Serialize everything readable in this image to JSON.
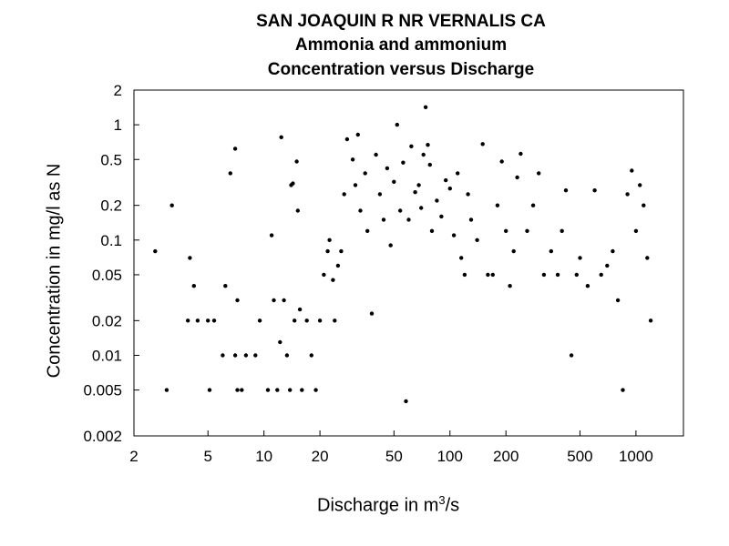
{
  "chart_data": {
    "type": "scatter",
    "title": "SAN JOAQUIN R NR VERNALIS CA",
    "subtitle": "Ammonia and ammonium",
    "subtitle2": "Concentration versus Discharge",
    "xlabel_prefix": "Discharge in m",
    "xlabel_sup": "3",
    "xlabel_suffix": "/s",
    "ylabel": "Concentration in mg/l as N",
    "xscale": "log",
    "yscale": "log",
    "xlim": [
      2,
      1800
    ],
    "ylim": [
      0.002,
      2
    ],
    "xticks": [
      2,
      5,
      10,
      20,
      50,
      100,
      200,
      500,
      1000
    ],
    "xtick_labels": [
      "2",
      "5",
      "10",
      "20",
      "50",
      "100",
      "200",
      "500",
      "1000"
    ],
    "yticks": [
      0.002,
      0.005,
      0.01,
      0.02,
      0.05,
      0.1,
      0.2,
      0.5,
      1,
      2
    ],
    "ytick_labels": [
      "0.002",
      "0.005",
      "0.01",
      "0.02",
      "0.05",
      "0.1",
      "0.2",
      "0.5",
      "1",
      "2"
    ],
    "grid": false,
    "marker": "filled-circle",
    "color": "#000000",
    "points": [
      [
        2.6,
        0.08
      ],
      [
        3.0,
        0.005
      ],
      [
        3.2,
        0.2
      ],
      [
        3.9,
        0.02
      ],
      [
        4.0,
        0.07
      ],
      [
        4.2,
        0.04
      ],
      [
        4.4,
        0.02
      ],
      [
        5.0,
        0.02
      ],
      [
        5.1,
        0.005
      ],
      [
        5.4,
        0.02
      ],
      [
        6.0,
        0.01
      ],
      [
        6.2,
        0.04
      ],
      [
        6.6,
        0.38
      ],
      [
        7.0,
        0.62
      ],
      [
        7.0,
        0.01
      ],
      [
        7.2,
        0.03
      ],
      [
        7.2,
        0.005
      ],
      [
        7.6,
        0.005
      ],
      [
        8.0,
        0.01
      ],
      [
        9.0,
        0.01
      ],
      [
        9.5,
        0.02
      ],
      [
        10.5,
        0.005
      ],
      [
        11.0,
        0.11
      ],
      [
        11.3,
        0.03
      ],
      [
        11.8,
        0.005
      ],
      [
        12.2,
        0.013
      ],
      [
        12.4,
        0.78
      ],
      [
        12.8,
        0.03
      ],
      [
        13.3,
        0.01
      ],
      [
        13.8,
        0.005
      ],
      [
        14.0,
        0.3
      ],
      [
        14.3,
        0.31
      ],
      [
        14.6,
        0.02
      ],
      [
        15.0,
        0.48
      ],
      [
        15.2,
        0.18
      ],
      [
        15.6,
        0.025
      ],
      [
        16.0,
        0.005
      ],
      [
        17.0,
        0.02
      ],
      [
        18.0,
        0.01
      ],
      [
        19.0,
        0.005
      ],
      [
        20.0,
        0.02
      ],
      [
        21.0,
        0.05
      ],
      [
        22.0,
        0.08
      ],
      [
        22.5,
        0.1
      ],
      [
        23.5,
        0.045
      ],
      [
        24.0,
        0.02
      ],
      [
        25.0,
        0.06
      ],
      [
        26.0,
        0.08
      ],
      [
        27.0,
        0.25
      ],
      [
        28.0,
        0.75
      ],
      [
        30.0,
        0.5
      ],
      [
        31.0,
        0.3
      ],
      [
        32.0,
        0.82
      ],
      [
        33.0,
        0.18
      ],
      [
        35.0,
        0.38
      ],
      [
        36.0,
        0.12
      ],
      [
        38.0,
        0.023
      ],
      [
        40.0,
        0.55
      ],
      [
        42.0,
        0.25
      ],
      [
        44.0,
        0.15
      ],
      [
        46.0,
        0.42
      ],
      [
        48.0,
        0.09
      ],
      [
        50.0,
        0.32
      ],
      [
        52.0,
        1.0
      ],
      [
        54.0,
        0.18
      ],
      [
        56.0,
        0.47
      ],
      [
        58.0,
        0.004
      ],
      [
        60.0,
        0.15
      ],
      [
        62.0,
        0.65
      ],
      [
        65.0,
        0.26
      ],
      [
        68.0,
        0.3
      ],
      [
        70.0,
        0.19
      ],
      [
        72.0,
        0.55
      ],
      [
        74.0,
        1.42
      ],
      [
        76.0,
        0.67
      ],
      [
        78.0,
        0.45
      ],
      [
        80.0,
        0.12
      ],
      [
        85.0,
        0.22
      ],
      [
        90.0,
        0.16
      ],
      [
        95.0,
        0.33
      ],
      [
        100.0,
        0.28
      ],
      [
        105.0,
        0.11
      ],
      [
        110.0,
        0.38
      ],
      [
        115.0,
        0.07
      ],
      [
        120.0,
        0.05
      ],
      [
        125.0,
        0.25
      ],
      [
        130.0,
        0.15
      ],
      [
        140.0,
        0.1
      ],
      [
        150.0,
        0.68
      ],
      [
        160.0,
        0.05
      ],
      [
        170.0,
        0.05
      ],
      [
        180.0,
        0.2
      ],
      [
        190.0,
        0.48
      ],
      [
        200.0,
        0.12
      ],
      [
        210.0,
        0.04
      ],
      [
        220.0,
        0.08
      ],
      [
        230.0,
        0.35
      ],
      [
        240.0,
        0.56
      ],
      [
        260.0,
        0.12
      ],
      [
        280.0,
        0.2
      ],
      [
        300.0,
        0.38
      ],
      [
        320.0,
        0.05
      ],
      [
        350.0,
        0.08
      ],
      [
        380.0,
        0.05
      ],
      [
        400.0,
        0.12
      ],
      [
        420.0,
        0.27
      ],
      [
        450.0,
        0.01
      ],
      [
        480.0,
        0.05
      ],
      [
        500.0,
        0.07
      ],
      [
        550.0,
        0.04
      ],
      [
        600.0,
        0.27
      ],
      [
        650.0,
        0.05
      ],
      [
        700.0,
        0.06
      ],
      [
        750.0,
        0.08
      ],
      [
        800.0,
        0.03
      ],
      [
        850.0,
        0.005
      ],
      [
        900.0,
        0.25
      ],
      [
        950.0,
        0.4
      ],
      [
        1000.0,
        0.12
      ],
      [
        1050.0,
        0.3
      ],
      [
        1100.0,
        0.2
      ],
      [
        1150.0,
        0.07
      ],
      [
        1200.0,
        0.02
      ]
    ]
  }
}
